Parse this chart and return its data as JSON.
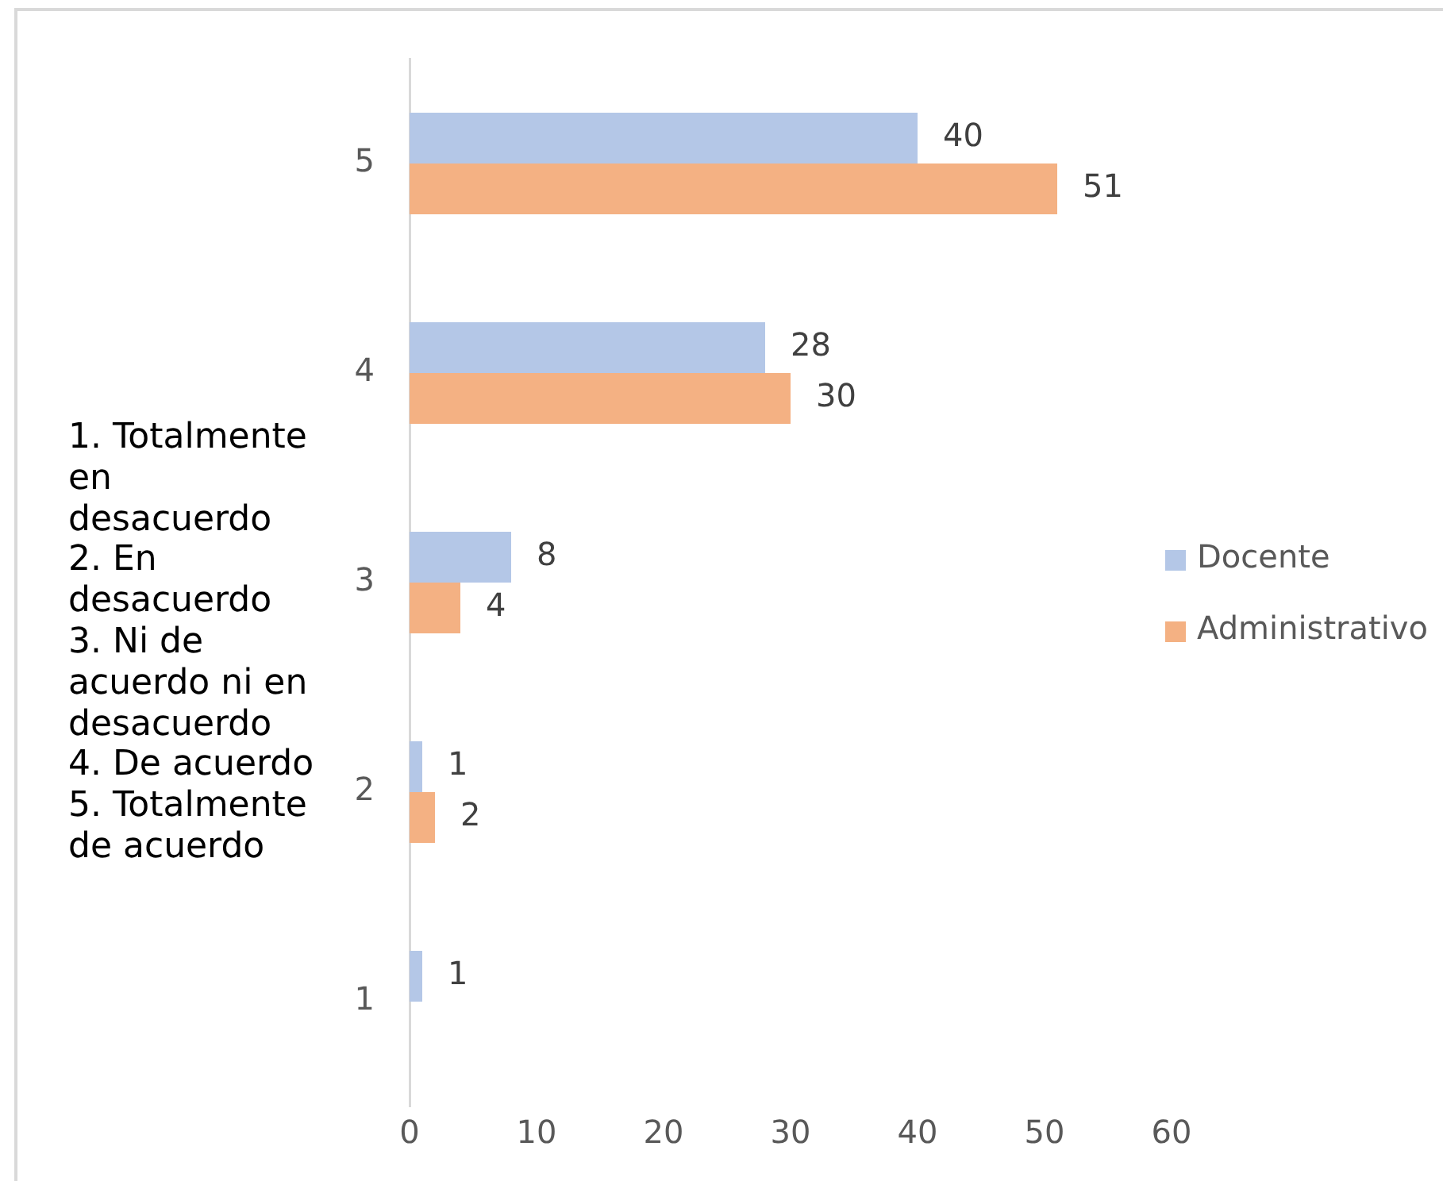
{
  "chart_data": {
    "type": "bar",
    "orientation": "horizontal",
    "categories": [
      "5",
      "4",
      "3",
      "2",
      "1"
    ],
    "series": [
      {
        "name": "Docente",
        "color": "#b4c7e7",
        "values": [
          40,
          28,
          8,
          1,
          1
        ]
      },
      {
        "name": "Administrativo",
        "color": "#f4b183",
        "values": [
          51,
          30,
          4,
          2,
          null
        ]
      }
    ],
    "xlim": [
      0,
      60
    ],
    "xticks": [
      0,
      10,
      20,
      30,
      40,
      50,
      60
    ],
    "grid": false,
    "legend": "right",
    "data_labels": true,
    "annotations": [
      "1. Totalmente en desacuerdo",
      "2. En desacuerdo",
      "3. Ni de acuerdo ni en desacuerdo",
      "4. De acuerdo",
      "5. Totalmente de acuerdo"
    ]
  }
}
